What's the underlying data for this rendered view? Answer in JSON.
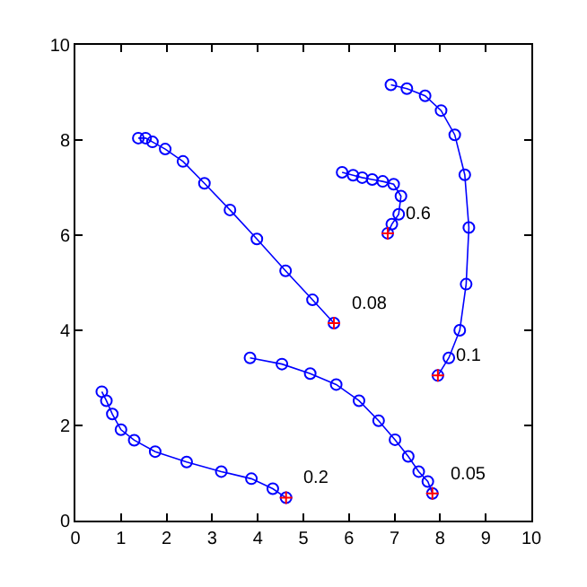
{
  "chart_data": {
    "type": "line",
    "marker": "circle",
    "line_style": "solid",
    "xlim": [
      0,
      10
    ],
    "ylim": [
      0,
      10
    ],
    "xticks": [
      0,
      1,
      2,
      3,
      4,
      5,
      6,
      7,
      8,
      9,
      10
    ],
    "yticks": [
      0,
      2,
      4,
      6,
      8,
      10
    ],
    "series": [
      {
        "color": "#0000ff",
        "x": [
          1.38,
          1.54,
          1.69,
          1.97,
          2.36,
          2.83,
          3.39,
          3.98,
          4.61,
          5.2,
          5.67
        ],
        "values": [
          8.04,
          8.04,
          7.96,
          7.81,
          7.55,
          7.09,
          6.53,
          5.92,
          5.25,
          4.64,
          4.15
        ]
      },
      {
        "color": "#0000ff",
        "x": [
          5.85,
          6.09,
          6.29,
          6.51,
          6.74,
          6.98,
          7.14,
          7.09,
          6.94,
          6.85
        ],
        "values": [
          7.32,
          7.26,
          7.21,
          7.17,
          7.13,
          7.07,
          6.82,
          6.44,
          6.23,
          6.04
        ]
      },
      {
        "color": "#0000ff",
        "x": [
          6.92,
          7.27,
          7.67,
          8.02,
          8.32,
          8.54,
          8.63,
          8.57,
          8.43,
          8.19,
          7.95
        ],
        "values": [
          9.16,
          9.08,
          8.93,
          8.62,
          8.11,
          7.27,
          6.16,
          4.97,
          4.0,
          3.42,
          3.05
        ]
      },
      {
        "color": "#0000ff",
        "x": [
          3.83,
          4.53,
          5.15,
          5.72,
          6.22,
          6.65,
          7.01,
          7.3,
          7.53,
          7.73,
          7.83
        ],
        "values": [
          3.42,
          3.29,
          3.09,
          2.86,
          2.52,
          2.1,
          1.7,
          1.35,
          1.03,
          0.82,
          0.57
        ]
      },
      {
        "color": "#0000ff",
        "x": [
          0.58,
          0.68,
          0.81,
          1.0,
          1.29,
          1.75,
          2.44,
          3.2,
          3.86,
          4.33,
          4.62
        ],
        "values": [
          2.71,
          2.52,
          2.24,
          1.91,
          1.69,
          1.45,
          1.23,
          1.03,
          0.88,
          0.67,
          0.48
        ]
      },
      {
        "type": "scatter",
        "marker": "cross",
        "color": "#ff0000",
        "x": [
          5.67,
          6.85,
          7.95,
          7.83,
          4.62
        ],
        "values": [
          4.15,
          6.04,
          3.05,
          0.57,
          0.48
        ]
      }
    ],
    "annotations": [
      {
        "text": "0.08",
        "x": 5.67,
        "y": 4.15
      },
      {
        "text": "0.6",
        "x": 6.85,
        "y": 6.04
      },
      {
        "text": "0.1",
        "x": 7.95,
        "y": 3.05
      },
      {
        "text": "0.05",
        "x": 7.83,
        "y": 0.57
      },
      {
        "text": "0.2",
        "x": 4.62,
        "y": 0.48
      }
    ]
  }
}
